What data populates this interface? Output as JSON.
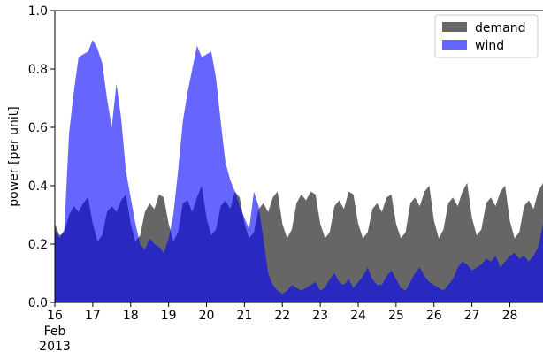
{
  "chart_data": {
    "type": "area",
    "xlim": [
      "2013-02-16T00:00",
      "2013-02-28T21:00"
    ],
    "ylim": [
      0.0,
      1.0
    ],
    "ylabel": "power [per unit]",
    "xlabel": "",
    "grid": false,
    "legend_position": "top-right",
    "yticks": [
      "0.0",
      "0.2",
      "0.4",
      "0.6",
      "0.8",
      "1.0"
    ],
    "ytick_values": [
      0.0,
      0.2,
      0.4,
      0.6,
      0.8,
      1.0
    ],
    "xticks": [
      {
        "day": 16,
        "label": "16",
        "sub1": "Feb",
        "sub2": "2013"
      },
      {
        "day": 17,
        "label": "17"
      },
      {
        "day": 18,
        "label": "18"
      },
      {
        "day": 19,
        "label": "19"
      },
      {
        "day": 20,
        "label": "20"
      },
      {
        "day": 21,
        "label": "21"
      },
      {
        "day": 22,
        "label": "22"
      },
      {
        "day": 23,
        "label": "23"
      },
      {
        "day": 24,
        "label": "24"
      },
      {
        "day": 25,
        "label": "25"
      },
      {
        "day": 26,
        "label": "26"
      },
      {
        "day": 27,
        "label": "27"
      },
      {
        "day": 28,
        "label": "28"
      }
    ],
    "x": [
      "2013-02-16T00:00",
      "2013-02-16T03:00",
      "2013-02-16T06:00",
      "2013-02-16T09:00",
      "2013-02-16T12:00",
      "2013-02-16T15:00",
      "2013-02-16T18:00",
      "2013-02-16T21:00",
      "2013-02-17T00:00",
      "2013-02-17T03:00",
      "2013-02-17T06:00",
      "2013-02-17T09:00",
      "2013-02-17T12:00",
      "2013-02-17T15:00",
      "2013-02-17T18:00",
      "2013-02-17T21:00",
      "2013-02-18T00:00",
      "2013-02-18T03:00",
      "2013-02-18T06:00",
      "2013-02-18T09:00",
      "2013-02-18T12:00",
      "2013-02-18T15:00",
      "2013-02-18T18:00",
      "2013-02-18T21:00",
      "2013-02-19T00:00",
      "2013-02-19T03:00",
      "2013-02-19T06:00",
      "2013-02-19T09:00",
      "2013-02-19T12:00",
      "2013-02-19T15:00",
      "2013-02-19T18:00",
      "2013-02-19T21:00",
      "2013-02-20T00:00",
      "2013-02-20T03:00",
      "2013-02-20T06:00",
      "2013-02-20T09:00",
      "2013-02-20T12:00",
      "2013-02-20T15:00",
      "2013-02-20T18:00",
      "2013-02-20T21:00",
      "2013-02-21T00:00",
      "2013-02-21T03:00",
      "2013-02-21T06:00",
      "2013-02-21T09:00",
      "2013-02-21T12:00",
      "2013-02-21T15:00",
      "2013-02-21T18:00",
      "2013-02-21T21:00",
      "2013-02-22T00:00",
      "2013-02-22T03:00",
      "2013-02-22T06:00",
      "2013-02-22T09:00",
      "2013-02-22T12:00",
      "2013-02-22T15:00",
      "2013-02-22T18:00",
      "2013-02-22T21:00",
      "2013-02-23T00:00",
      "2013-02-23T03:00",
      "2013-02-23T06:00",
      "2013-02-23T09:00",
      "2013-02-23T12:00",
      "2013-02-23T15:00",
      "2013-02-23T18:00",
      "2013-02-23T21:00",
      "2013-02-24T00:00",
      "2013-02-24T03:00",
      "2013-02-24T06:00",
      "2013-02-24T09:00",
      "2013-02-24T12:00",
      "2013-02-24T15:00",
      "2013-02-24T18:00",
      "2013-02-24T21:00",
      "2013-02-25T00:00",
      "2013-02-25T03:00",
      "2013-02-25T06:00",
      "2013-02-25T09:00",
      "2013-02-25T12:00",
      "2013-02-25T15:00",
      "2013-02-25T18:00",
      "2013-02-25T21:00",
      "2013-02-26T00:00",
      "2013-02-26T03:00",
      "2013-02-26T06:00",
      "2013-02-26T09:00",
      "2013-02-26T12:00",
      "2013-02-26T15:00",
      "2013-02-26T18:00",
      "2013-02-26T21:00",
      "2013-02-27T00:00",
      "2013-02-27T03:00",
      "2013-02-27T06:00",
      "2013-02-27T09:00",
      "2013-02-27T12:00",
      "2013-02-27T15:00",
      "2013-02-27T18:00",
      "2013-02-27T21:00",
      "2013-02-28T00:00",
      "2013-02-28T03:00",
      "2013-02-28T06:00",
      "2013-02-28T09:00",
      "2013-02-28T12:00",
      "2013-02-28T15:00",
      "2013-02-28T18:00",
      "2013-02-28T21:00"
    ],
    "series": [
      {
        "name": "demand",
        "color": "#666666",
        "values": [
          0.27,
          0.23,
          0.24,
          0.3,
          0.33,
          0.31,
          0.34,
          0.36,
          0.27,
          0.21,
          0.23,
          0.31,
          0.33,
          0.31,
          0.35,
          0.37,
          0.27,
          0.21,
          0.23,
          0.31,
          0.34,
          0.32,
          0.37,
          0.36,
          0.27,
          0.21,
          0.24,
          0.34,
          0.35,
          0.31,
          0.36,
          0.4,
          0.29,
          0.23,
          0.25,
          0.33,
          0.35,
          0.32,
          0.38,
          0.36,
          0.27,
          0.22,
          0.24,
          0.32,
          0.34,
          0.31,
          0.36,
          0.38,
          0.27,
          0.22,
          0.25,
          0.34,
          0.37,
          0.35,
          0.38,
          0.37,
          0.27,
          0.22,
          0.24,
          0.33,
          0.35,
          0.32,
          0.38,
          0.37,
          0.27,
          0.22,
          0.24,
          0.32,
          0.34,
          0.31,
          0.36,
          0.37,
          0.27,
          0.22,
          0.24,
          0.34,
          0.36,
          0.33,
          0.38,
          0.4,
          0.28,
          0.22,
          0.25,
          0.34,
          0.36,
          0.33,
          0.38,
          0.41,
          0.29,
          0.23,
          0.25,
          0.34,
          0.36,
          0.33,
          0.38,
          0.4,
          0.28,
          0.22,
          0.24,
          0.33,
          0.35,
          0.32,
          0.38,
          0.41
        ]
      },
      {
        "name": "wind",
        "color": "#0000ff",
        "values": [
          0.25,
          0.22,
          0.25,
          0.58,
          0.72,
          0.84,
          0.85,
          0.86,
          0.9,
          0.87,
          0.82,
          0.7,
          0.6,
          0.75,
          0.63,
          0.45,
          0.36,
          0.27,
          0.2,
          0.18,
          0.22,
          0.2,
          0.19,
          0.17,
          0.22,
          0.3,
          0.45,
          0.62,
          0.72,
          0.8,
          0.88,
          0.84,
          0.85,
          0.86,
          0.77,
          0.62,
          0.48,
          0.42,
          0.38,
          0.33,
          0.29,
          0.25,
          0.38,
          0.33,
          0.22,
          0.1,
          0.06,
          0.04,
          0.03,
          0.04,
          0.06,
          0.05,
          0.04,
          0.05,
          0.06,
          0.07,
          0.04,
          0.05,
          0.08,
          0.1,
          0.07,
          0.06,
          0.08,
          0.05,
          0.07,
          0.09,
          0.12,
          0.08,
          0.06,
          0.06,
          0.09,
          0.11,
          0.08,
          0.05,
          0.04,
          0.07,
          0.1,
          0.12,
          0.09,
          0.07,
          0.06,
          0.05,
          0.04,
          0.06,
          0.08,
          0.12,
          0.14,
          0.13,
          0.11,
          0.12,
          0.13,
          0.15,
          0.14,
          0.16,
          0.12,
          0.14,
          0.16,
          0.17,
          0.15,
          0.16,
          0.14,
          0.16,
          0.19,
          0.27
        ]
      }
    ]
  }
}
